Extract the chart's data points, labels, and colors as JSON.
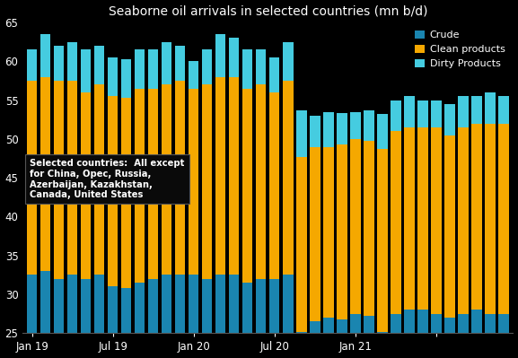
{
  "title": "Seaborne oil arrivals in selected countries (mn b/d)",
  "background_color": "#000000",
  "text_color": "#ffffff",
  "ylim": [
    25,
    65
  ],
  "yticks": [
    25,
    30,
    35,
    40,
    45,
    50,
    55,
    60,
    65
  ],
  "annotation": "Selected countries:  All except\nfor China, Opec, Russia,\nAzerbaijan, Kazakhstan,\nCanada, United States",
  "crude_color": "#1a85b0",
  "clean_color": "#f5a800",
  "dirty_color": "#45cce0",
  "series": {
    "crude": [
      32.5,
      33.0,
      32.0,
      32.5,
      32.0,
      32.5,
      31.0,
      30.8,
      31.5,
      32.0,
      32.5,
      32.5,
      32.5,
      32.0,
      32.5,
      32.5,
      31.5,
      32.0,
      32.0,
      32.5,
      25.2,
      26.5,
      27.0,
      26.8,
      27.5,
      27.2,
      25.2,
      27.5,
      28.0,
      28.0,
      27.5,
      27.0,
      27.5,
      28.0,
      27.5,
      27.5
    ],
    "clean": [
      25.0,
      25.0,
      25.5,
      25.0,
      24.0,
      24.5,
      24.5,
      24.5,
      25.0,
      24.5,
      24.5,
      25.0,
      24.0,
      25.0,
      25.5,
      25.5,
      25.0,
      25.0,
      24.0,
      25.0,
      22.5,
      22.5,
      22.0,
      22.5,
      22.5,
      22.5,
      23.5,
      23.5,
      23.5,
      23.5,
      24.0,
      23.5,
      24.0,
      24.0,
      24.5,
      24.5
    ],
    "dirty": [
      4.0,
      5.5,
      4.5,
      5.0,
      5.5,
      5.0,
      5.0,
      5.0,
      5.0,
      5.0,
      5.5,
      4.5,
      3.5,
      4.5,
      5.5,
      5.0,
      5.0,
      4.5,
      4.5,
      5.0,
      6.0,
      4.0,
      4.5,
      4.0,
      3.5,
      4.0,
      4.5,
      4.0,
      4.0,
      3.5,
      3.5,
      4.0,
      4.0,
      3.5,
      4.0,
      3.5
    ]
  },
  "num_bars": 36,
  "x_tick_positions": [
    0,
    6,
    12,
    18,
    24,
    30
  ],
  "x_tick_labels": [
    "Jan 19",
    "Jul 19",
    "Jan 20",
    "Jul 20",
    "Jan 21",
    ""
  ]
}
